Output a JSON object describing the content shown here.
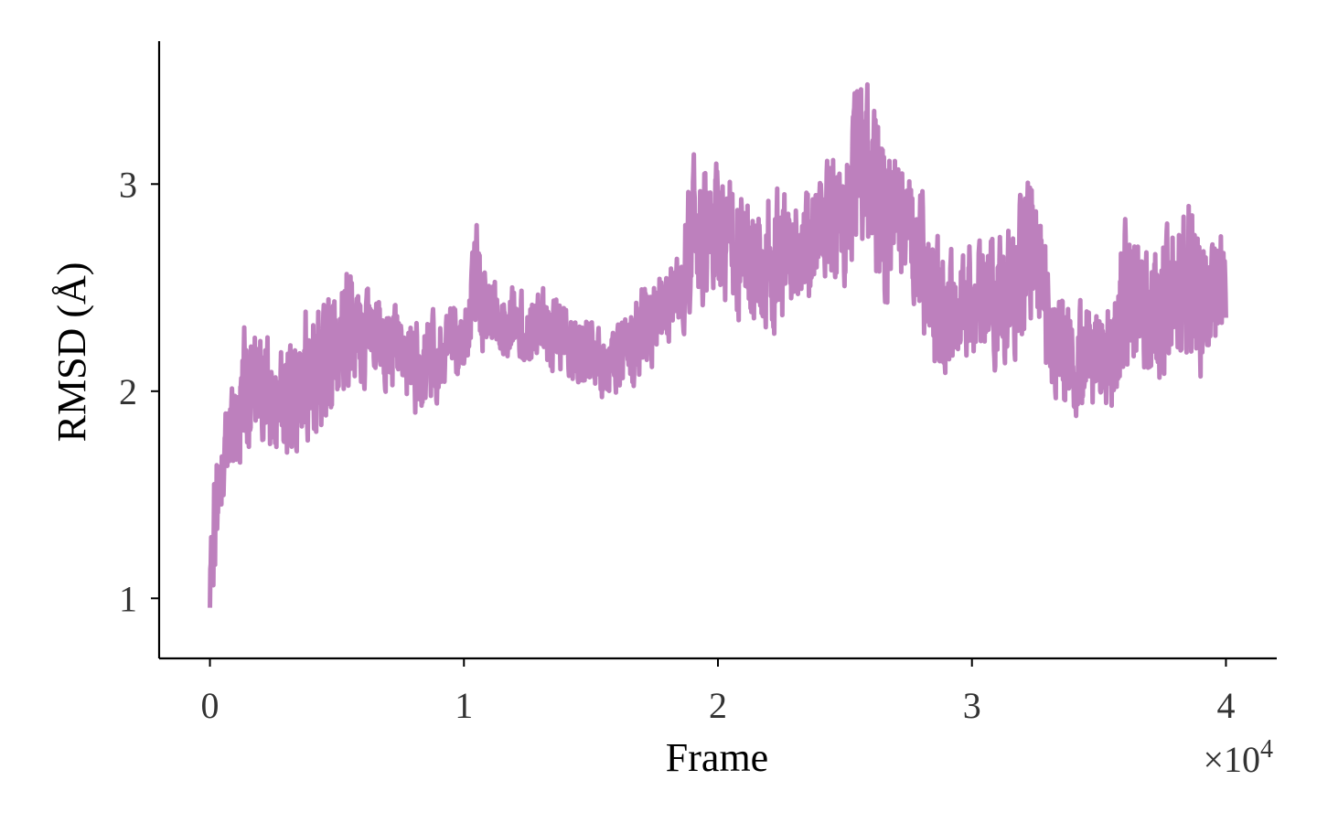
{
  "chart_data": {
    "type": "line",
    "title": "",
    "xlabel": "Frame",
    "ylabel": "RMSD (Å)",
    "x_multiplier_label": "×10",
    "x_multiplier_exponent": "4",
    "xlim": [
      -2000,
      42000
    ],
    "ylim": [
      0.71,
      3.69
    ],
    "x_ticks": [
      0,
      10000,
      20000,
      30000,
      40000
    ],
    "x_tick_labels": [
      "0",
      "1",
      "2",
      "3",
      "4"
    ],
    "y_ticks": [
      1,
      2,
      3
    ],
    "y_tick_labels": [
      "1",
      "2",
      "3"
    ],
    "grid": false,
    "legend": "none",
    "series": [
      {
        "color": "#bd80bd",
        "x": [
          0,
          200,
          500,
          1000,
          1500,
          2000,
          2500,
          3000,
          3500,
          4000,
          4500,
          5000,
          5500,
          6000,
          6500,
          7000,
          7500,
          8000,
          8500,
          9000,
          9500,
          10000,
          10500,
          11000,
          11500,
          12000,
          12500,
          13000,
          13500,
          14000,
          14500,
          15000,
          15500,
          16000,
          16500,
          17000,
          17500,
          18000,
          18500,
          19000,
          19500,
          20000,
          20500,
          21000,
          21500,
          22000,
          22500,
          23000,
          23500,
          24000,
          24500,
          25000,
          25500,
          26000,
          26500,
          27000,
          27500,
          28000,
          28500,
          29000,
          29500,
          30000,
          30500,
          31000,
          31500,
          32000,
          32500,
          33000,
          33500,
          34000,
          34500,
          35000,
          35500,
          36000,
          36500,
          37000,
          37500,
          38000,
          38500,
          39000,
          39500,
          40000
        ],
        "low": [
          0.84,
          1.0,
          1.45,
          1.6,
          1.65,
          1.65,
          1.6,
          1.6,
          1.65,
          1.7,
          1.75,
          1.85,
          1.95,
          1.95,
          1.95,
          1.95,
          1.95,
          1.8,
          1.85,
          1.9,
          2.0,
          2.05,
          2.0,
          2.2,
          2.05,
          2.1,
          2.1,
          2.1,
          2.05,
          2.05,
          2.0,
          1.95,
          1.9,
          1.95,
          1.95,
          2.0,
          2.05,
          2.2,
          2.25,
          2.3,
          2.35,
          2.35,
          2.3,
          2.25,
          2.25,
          2.15,
          2.2,
          2.3,
          2.3,
          2.5,
          2.45,
          2.45,
          2.5,
          2.55,
          2.3,
          2.55,
          2.4,
          2.2,
          1.9,
          2.0,
          2.1,
          2.1,
          2.05,
          2.05,
          2.05,
          2.15,
          2.2,
          1.95,
          1.85,
          1.85,
          1.85,
          1.85,
          1.85,
          1.95,
          2.0,
          2.05,
          1.9,
          2.05,
          2.1,
          2.0,
          2.1,
          2.25
        ],
        "high": [
          1.3,
          1.8,
          1.95,
          2.1,
          2.5,
          2.4,
          2.25,
          2.25,
          2.4,
          2.55,
          2.5,
          2.55,
          2.8,
          2.55,
          2.5,
          2.45,
          2.45,
          2.4,
          2.45,
          2.4,
          2.45,
          2.4,
          2.85,
          2.55,
          2.6,
          2.55,
          2.5,
          2.55,
          2.5,
          2.45,
          2.4,
          2.4,
          2.3,
          2.35,
          2.4,
          2.6,
          2.6,
          2.6,
          2.75,
          3.2,
          3.15,
          3.2,
          3.25,
          3.05,
          2.95,
          3.1,
          3.05,
          3.05,
          3.05,
          3.05,
          3.3,
          3.3,
          3.55,
          3.55,
          3.3,
          3.25,
          3.1,
          3.05,
          2.85,
          2.7,
          2.75,
          2.8,
          2.75,
          2.85,
          2.9,
          3.05,
          3.1,
          2.65,
          2.5,
          2.45,
          2.5,
          2.45,
          2.5,
          2.95,
          2.8,
          2.7,
          2.9,
          2.85,
          3.1,
          2.8,
          2.75,
          2.9
        ]
      }
    ]
  }
}
